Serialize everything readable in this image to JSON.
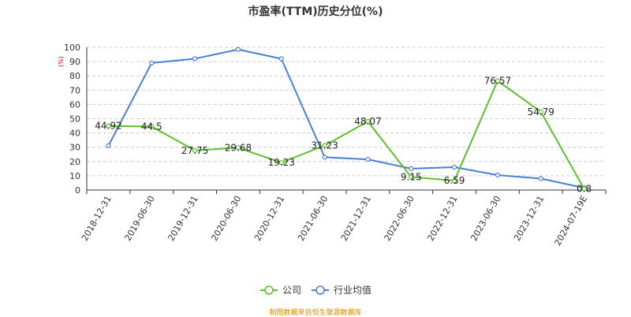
{
  "chart_data": {
    "type": "line",
    "title": "市盈率(TTM)历史分位(%)",
    "ylabel": "(%)",
    "ylim": [
      0,
      100
    ],
    "yticks": [
      0,
      10,
      20,
      30,
      40,
      50,
      60,
      70,
      80,
      90,
      100
    ],
    "grid": true,
    "legend_position": "bottom-center",
    "categories": [
      "2018-12-31",
      "2019-06-30",
      "2019-12-31",
      "2020-06-30",
      "2020-12-31",
      "2021-06-30",
      "2021-12-31",
      "2022-06-30",
      "2022-12-31",
      "2023-06-30",
      "2023-12-31",
      "2024-07-19E"
    ],
    "series": [
      {
        "name": "公司",
        "color": "#5bc02a",
        "values": [
          44.92,
          44.5,
          27.75,
          29.68,
          19.23,
          31.23,
          48.07,
          9.15,
          6.59,
          76.57,
          54.79,
          0.8
        ],
        "labels": [
          "44.92",
          "44.5",
          "27.75",
          "29.68",
          "19.23",
          "31.23",
          "48.07",
          "9.15",
          "6.59",
          "76.57",
          "54.79",
          "0.8"
        ]
      },
      {
        "name": "行业均值",
        "color": "#4a7fd6",
        "values": [
          31,
          89,
          92,
          98.5,
          92,
          23,
          21.5,
          15,
          16,
          10.5,
          8,
          1.5
        ]
      }
    ]
  },
  "footer": {
    "source": "制图数据来自恒生聚源数据库"
  }
}
